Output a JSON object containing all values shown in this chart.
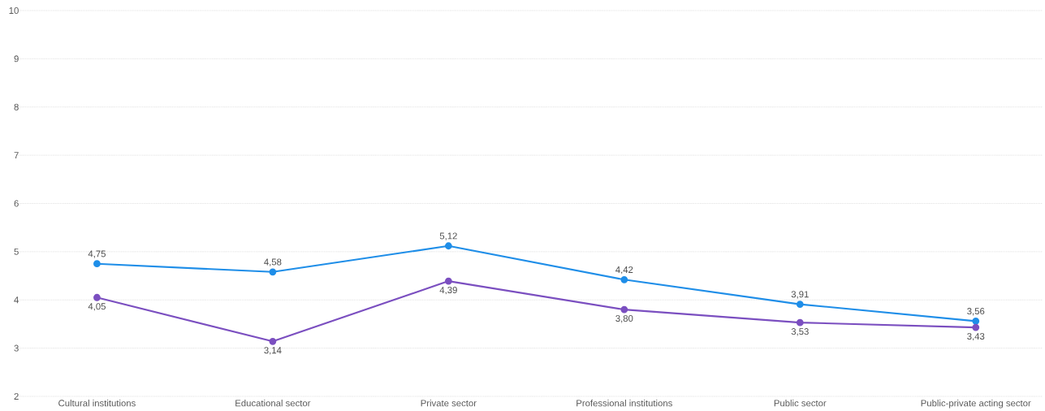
{
  "chart_data": {
    "type": "line",
    "categories": [
      "Cultural institutions",
      "Educational sector",
      "Private sector",
      "Professional institutions",
      "Public sector",
      "Public-private acting sector"
    ],
    "series": [
      {
        "color": "#1f8ee8",
        "values": [
          4.75,
          4.58,
          5.12,
          4.42,
          3.91,
          3.56
        ],
        "value_labels": [
          "4,75",
          "4,58",
          "5,12",
          "4,42",
          "3,91",
          "3,56"
        ]
      },
      {
        "color": "#7b4fc0",
        "values": [
          4.05,
          3.14,
          4.39,
          3.8,
          3.53,
          3.43
        ],
        "value_labels": [
          "4,05",
          "3,14",
          "4,39",
          "3,80",
          "3,53",
          "3,43"
        ]
      }
    ],
    "ylim": [
      2,
      10
    ],
    "yticks": [
      2,
      3,
      4,
      5,
      6,
      7,
      8,
      9,
      10
    ],
    "grid": "y",
    "marker": "circle",
    "line_style": "solid"
  }
}
